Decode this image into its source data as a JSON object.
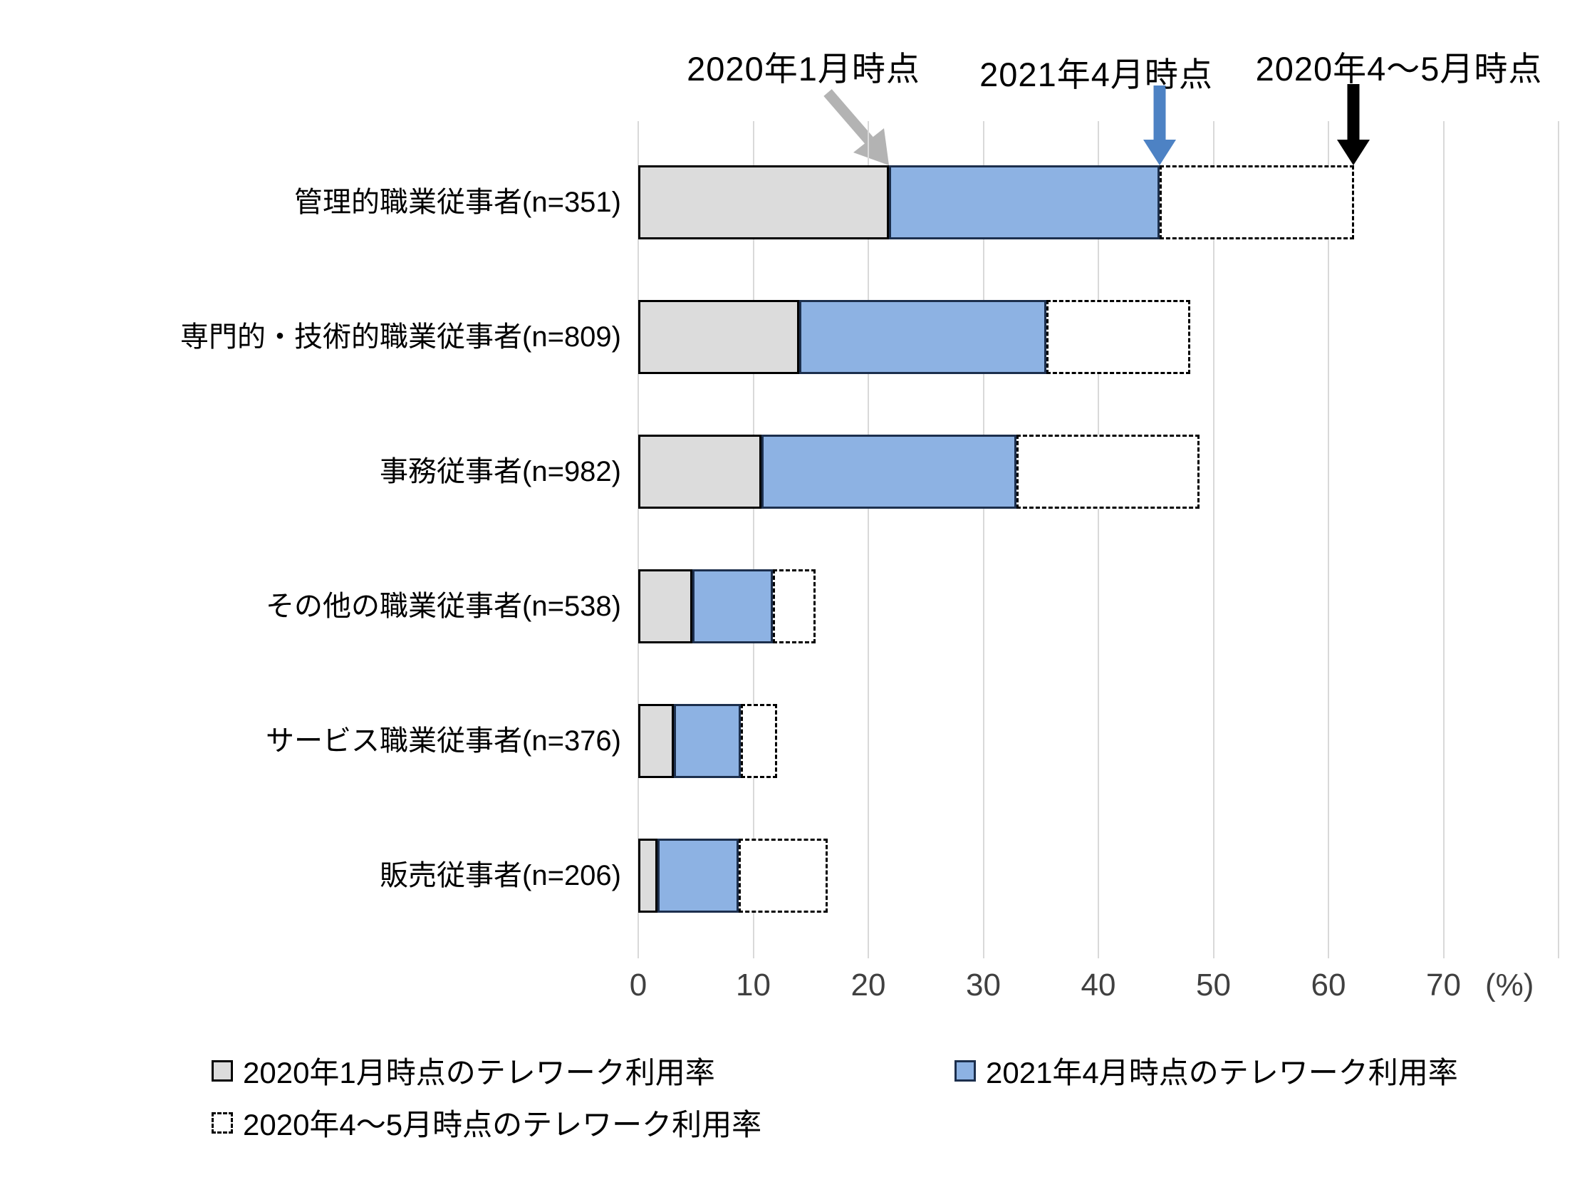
{
  "chart_data": {
    "type": "bar",
    "orientation": "horizontal",
    "title": "",
    "xlabel_unit": "(%)",
    "xlim": [
      0,
      80
    ],
    "x_ticks": [
      0,
      10,
      20,
      30,
      40,
      50,
      60,
      70
    ],
    "grid": true,
    "categories": [
      "管理的職業従事者(n=351)",
      "専門的・技術的職業従事者(n=809)",
      "事務従事者(n=982)",
      "その他の職業従事者(n=538)",
      "サービス職業従事者(n=376)",
      "販売従事者(n=206)"
    ],
    "series": [
      {
        "name": "2020年1月時点のテレワーク利用率",
        "style": "solid-gray",
        "values": [
          21.8,
          14.0,
          10.7,
          4.7,
          3.1,
          1.7
        ]
      },
      {
        "name": "2021年4月時点のテレワーク利用率",
        "style": "solid-blue",
        "values": [
          45.3,
          35.5,
          32.9,
          11.7,
          8.9,
          8.7
        ]
      },
      {
        "name": "2020年4〜5月時点のテレワーク利用率",
        "style": "dashed-outline",
        "values": [
          62.2,
          48.0,
          48.8,
          15.4,
          12.1,
          16.5
        ]
      }
    ],
    "value_semantics": "values are cumulative telework usage rates per time point; segments drawn between successive series values"
  },
  "annotations": [
    {
      "label": "2020年1月時点",
      "arrow": "gray-diagonal-arrow",
      "arrow_color": "#b3b3b3",
      "points_to_pct": 21.8
    },
    {
      "label": "2021年4月時点",
      "arrow": "blue-down-arrow",
      "arrow_color": "#4d82c4",
      "points_to_pct": 45.3
    },
    {
      "label": "2020年4〜5月時点",
      "arrow": "black-down-arrow",
      "arrow_color": "#000000",
      "points_to_pct": 62.2
    }
  ],
  "legend": {
    "items": [
      {
        "label": "2020年1月時点のテレワーク利用率",
        "swatch": "gray-filled-square"
      },
      {
        "label": "2021年4月時点のテレワーク利用率",
        "swatch": "blue-filled-square"
      },
      {
        "label": "2020年4〜5月時点のテレワーク利用率",
        "swatch": "dashed-outline-square"
      }
    ]
  },
  "colors": {
    "bar_gray_fill": "#dcdcdc",
    "bar_gray_border": "#000000",
    "bar_blue_fill": "#8db2e3",
    "bar_blue_border": "#1c2f4d",
    "bar_dashed_border": "#000000",
    "gridline": "#d9d9d9",
    "gray_arrow": "#b3b3b3",
    "blue_arrow": "#4d82c4",
    "black_arrow": "#000000"
  }
}
